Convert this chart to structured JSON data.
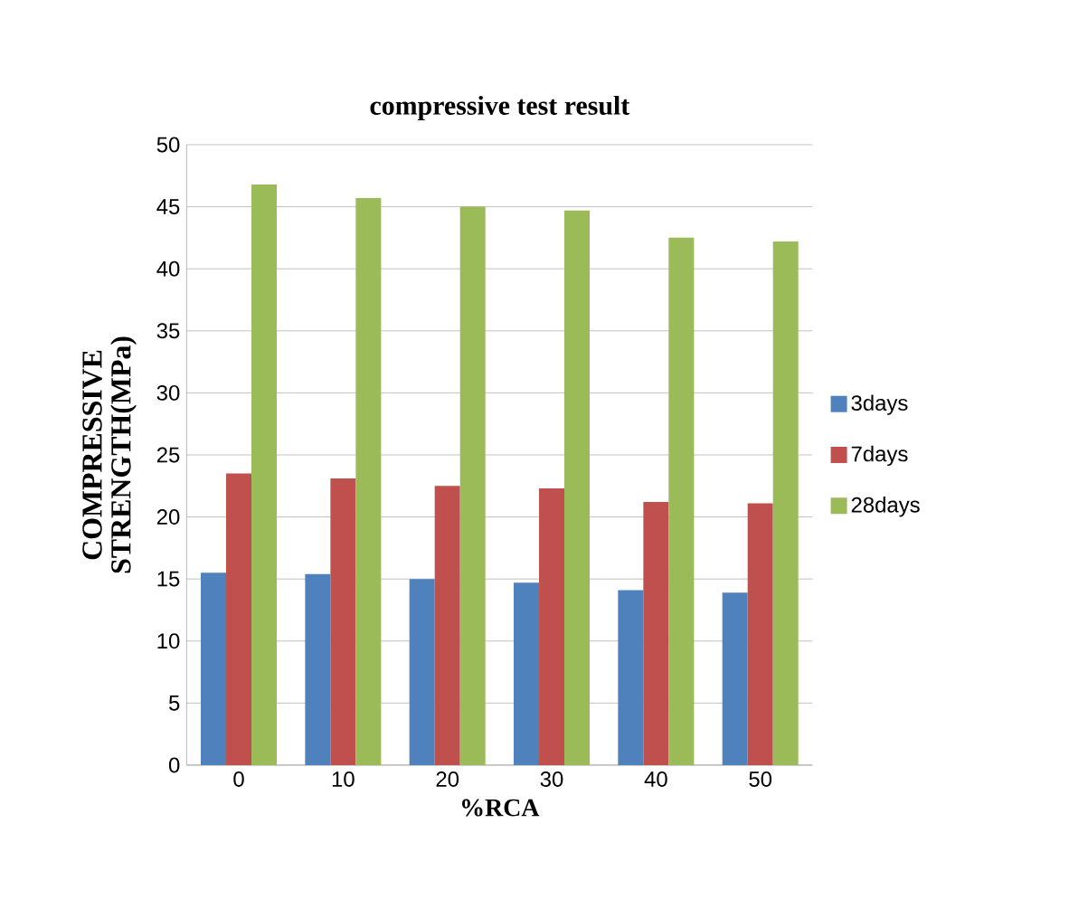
{
  "chart_data": {
    "type": "bar",
    "title": "compressive test result",
    "xlabel": "%RCA",
    "ylabel": "COMPRESSIVE STRENGTH(MPa)",
    "categories": [
      "0",
      "10",
      "20",
      "30",
      "40",
      "50"
    ],
    "series": [
      {
        "name": "3days",
        "color": "#4f81bd",
        "values": [
          15.5,
          15.4,
          15.0,
          14.7,
          14.1,
          13.9
        ]
      },
      {
        "name": "7days",
        "color": "#c0504d",
        "values": [
          23.5,
          23.1,
          22.5,
          22.3,
          21.2,
          21.1
        ]
      },
      {
        "name": "28days",
        "color": "#9bbb59",
        "values": [
          46.8,
          45.7,
          45.0,
          44.7,
          42.5,
          42.2
        ]
      }
    ],
    "ylim": [
      0,
      50
    ],
    "yticks": [
      0,
      5,
      10,
      15,
      20,
      25,
      30,
      35,
      40,
      45,
      50
    ],
    "grid": "y",
    "legend": "right"
  }
}
